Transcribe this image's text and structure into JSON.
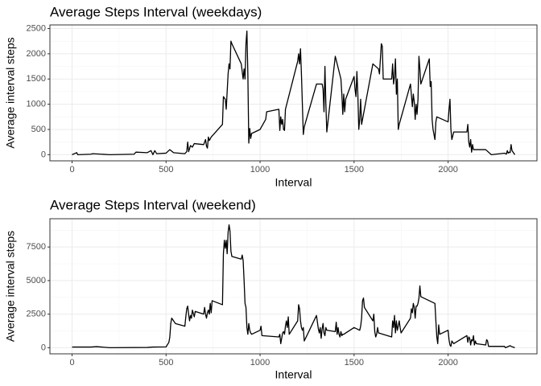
{
  "chart_data": [
    {
      "type": "line",
      "title": "Average Steps Interval (weekdays)",
      "x_label": "Interval",
      "y_label": "Average interval steps",
      "x": [
        0,
        25,
        30,
        100,
        110,
        200,
        330,
        340,
        400,
        420,
        430,
        440,
        450,
        500,
        520,
        540,
        600,
        610,
        615,
        620,
        630,
        640,
        650,
        700,
        710,
        715,
        720,
        725,
        730,
        740,
        800,
        805,
        815,
        820,
        830,
        835,
        840,
        845,
        850,
        900,
        910,
        915,
        920,
        925,
        930,
        935,
        940,
        945,
        950,
        955,
        1000,
        1030,
        1035,
        1100,
        1105,
        1110,
        1115,
        1120,
        1125,
        1130,
        1135,
        1200,
        1205,
        1210,
        1215,
        1220,
        1225,
        1230,
        1235,
        1300,
        1330,
        1335,
        1340,
        1345,
        1350,
        1355,
        1400,
        1430,
        1435,
        1440,
        1445,
        1450,
        1455,
        1500,
        1505,
        1510,
        1515,
        1520,
        1525,
        1530,
        1535,
        1540,
        1600,
        1630,
        1635,
        1640,
        1645,
        1650,
        1655,
        1700,
        1705,
        1710,
        1715,
        1720,
        1725,
        1730,
        1735,
        1740,
        1800,
        1810,
        1815,
        1820,
        1825,
        1830,
        1835,
        1840,
        1845,
        1850,
        1855,
        1900,
        1905,
        1910,
        1915,
        1920,
        1925,
        1930,
        1935,
        1940,
        2000,
        2005,
        2010,
        2015,
        2020,
        2030,
        2100,
        2105,
        2110,
        2115,
        2120,
        2125,
        2130,
        2135,
        2200,
        2230,
        2300,
        2310,
        2315,
        2320,
        2325,
        2330,
        2335,
        2340,
        2355
      ],
      "values": [
        0,
        40,
        0,
        10,
        20,
        0,
        10,
        50,
        40,
        80,
        0,
        80,
        20,
        30,
        100,
        40,
        20,
        60,
        250,
        60,
        180,
        150,
        220,
        200,
        300,
        170,
        130,
        350,
        280,
        350,
        600,
        1150,
        1100,
        900,
        1600,
        1800,
        1700,
        2250,
        2200,
        1800,
        1500,
        1700,
        1500,
        2200,
        2450,
        1600,
        230,
        520,
        320,
        420,
        500,
        700,
        850,
        900,
        480,
        750,
        600,
        700,
        500,
        480,
        900,
        1850,
        2000,
        1800,
        2100,
        1600,
        1000,
        400,
        550,
        1400,
        1400,
        1300,
        850,
        1750,
        1000,
        450,
        1950,
        1500,
        1200,
        800,
        1200,
        850,
        1100,
        1550,
        1300,
        1150,
        1650,
        1200,
        500,
        700,
        1100,
        600,
        1800,
        1700,
        1600,
        1900,
        2200,
        2150,
        1500,
        1500,
        1800,
        1400,
        1550,
        1900,
        1200,
        1500,
        500,
        600,
        1400,
        950,
        1200,
        1050,
        700,
        1000,
        800,
        1100,
        1950,
        1700,
        1400,
        1900,
        1350,
        1450,
        700,
        500,
        400,
        300,
        650,
        750,
        650,
        900,
        1100,
        500,
        300,
        450,
        450,
        600,
        250,
        150,
        300,
        50,
        200,
        100,
        100,
        0,
        30,
        10,
        80,
        30,
        50,
        40,
        200,
        80,
        0
      ],
      "color": "#000000",
      "xlim": [
        -117.75,
        2472.75
      ],
      "xticks": [
        0,
        500,
        1000,
        1500,
        2000
      ],
      "ylim": [
        -122,
        2572
      ],
      "yticks": [
        0,
        500,
        1000,
        1500,
        2000,
        2500
      ],
      "grid": true
    },
    {
      "type": "line",
      "title": "Average Steps Interval (weekend)",
      "x_label": "Interval",
      "y_label": "Average interval steps",
      "x": [
        0,
        100,
        130,
        200,
        400,
        430,
        500,
        515,
        520,
        525,
        530,
        540,
        550,
        600,
        605,
        610,
        615,
        620,
        625,
        630,
        635,
        640,
        650,
        655,
        700,
        705,
        710,
        715,
        720,
        725,
        730,
        735,
        740,
        745,
        800,
        805,
        810,
        815,
        820,
        825,
        830,
        835,
        840,
        845,
        850,
        900,
        905,
        910,
        915,
        920,
        925,
        930,
        935,
        940,
        945,
        950,
        955,
        1000,
        1005,
        1010,
        1100,
        1105,
        1110,
        1115,
        1120,
        1125,
        1130,
        1135,
        1140,
        1145,
        1150,
        1155,
        1200,
        1205,
        1210,
        1215,
        1220,
        1225,
        1230,
        1235,
        1300,
        1310,
        1315,
        1320,
        1325,
        1330,
        1335,
        1340,
        1345,
        1350,
        1355,
        1400,
        1405,
        1410,
        1415,
        1420,
        1425,
        1430,
        1435,
        1440,
        1445,
        1500,
        1530,
        1535,
        1540,
        1545,
        1550,
        1555,
        1600,
        1605,
        1610,
        1615,
        1620,
        1625,
        1630,
        1700,
        1705,
        1710,
        1715,
        1720,
        1725,
        1730,
        1735,
        1740,
        1745,
        1750,
        1800,
        1805,
        1810,
        1815,
        1820,
        1825,
        1830,
        1835,
        1840,
        1845,
        1850,
        1855,
        1900,
        1930,
        1935,
        1940,
        1945,
        1950,
        1955,
        2000,
        2005,
        2010,
        2015,
        2020,
        2030,
        2100,
        2105,
        2110,
        2115,
        2120,
        2125,
        2130,
        2135,
        2140,
        2145,
        2150,
        2200,
        2205,
        2210,
        2215,
        2300,
        2305,
        2330,
        2335,
        2355
      ],
      "values": [
        50,
        50,
        80,
        0,
        20,
        50,
        60,
        400,
        800,
        1800,
        2200,
        2000,
        1800,
        1600,
        2300,
        2900,
        3100,
        2500,
        2000,
        2400,
        2200,
        2800,
        2300,
        2700,
        2500,
        3000,
        2500,
        2200,
        2600,
        2800,
        2500,
        3300,
        2600,
        3500,
        3200,
        7000,
        8000,
        7400,
        8000,
        7000,
        8600,
        9150,
        8700,
        7200,
        6800,
        6600,
        6900,
        6500,
        5000,
        3300,
        3000,
        1500,
        1000,
        1800,
        1300,
        1100,
        1000,
        1300,
        1600,
        900,
        800,
        1000,
        300,
        700,
        1100,
        1200,
        1000,
        1600,
        2000,
        1500,
        2300,
        1000,
        2000,
        3200,
        2900,
        2000,
        1500,
        1300,
        1500,
        500,
        2400,
        1400,
        1100,
        1500,
        700,
        1400,
        1800,
        1100,
        900,
        1500,
        1300,
        1200,
        1900,
        1000,
        1500,
        1000,
        800,
        1200,
        900,
        1000,
        1000,
        1500,
        1300,
        1600,
        2200,
        3500,
        3700,
        3000,
        2000,
        2500,
        1200,
        800,
        1000,
        1500,
        1100,
        800,
        2000,
        1500,
        2400,
        1100,
        2000,
        1300,
        1600,
        2000,
        1500,
        1100,
        2200,
        2900,
        2600,
        3300,
        3000,
        2200,
        3100,
        3100,
        3300,
        3700,
        4600,
        3800,
        3500,
        3300,
        2000,
        800,
        300,
        1700,
        1000,
        1300,
        600,
        200,
        100,
        500,
        300,
        900,
        400,
        800,
        700,
        200,
        600,
        500,
        900,
        200,
        500,
        300,
        200,
        600,
        500,
        100,
        100,
        0,
        150,
        100,
        0
      ],
      "color": "#000000",
      "xlim": [
        -117.75,
        2472.75
      ],
      "xticks": [
        0,
        500,
        1000,
        1500,
        2000
      ],
      "ylim": [
        -457,
        9607
      ],
      "yticks": [
        0,
        2500,
        5000,
        7500
      ],
      "grid": true
    }
  ]
}
